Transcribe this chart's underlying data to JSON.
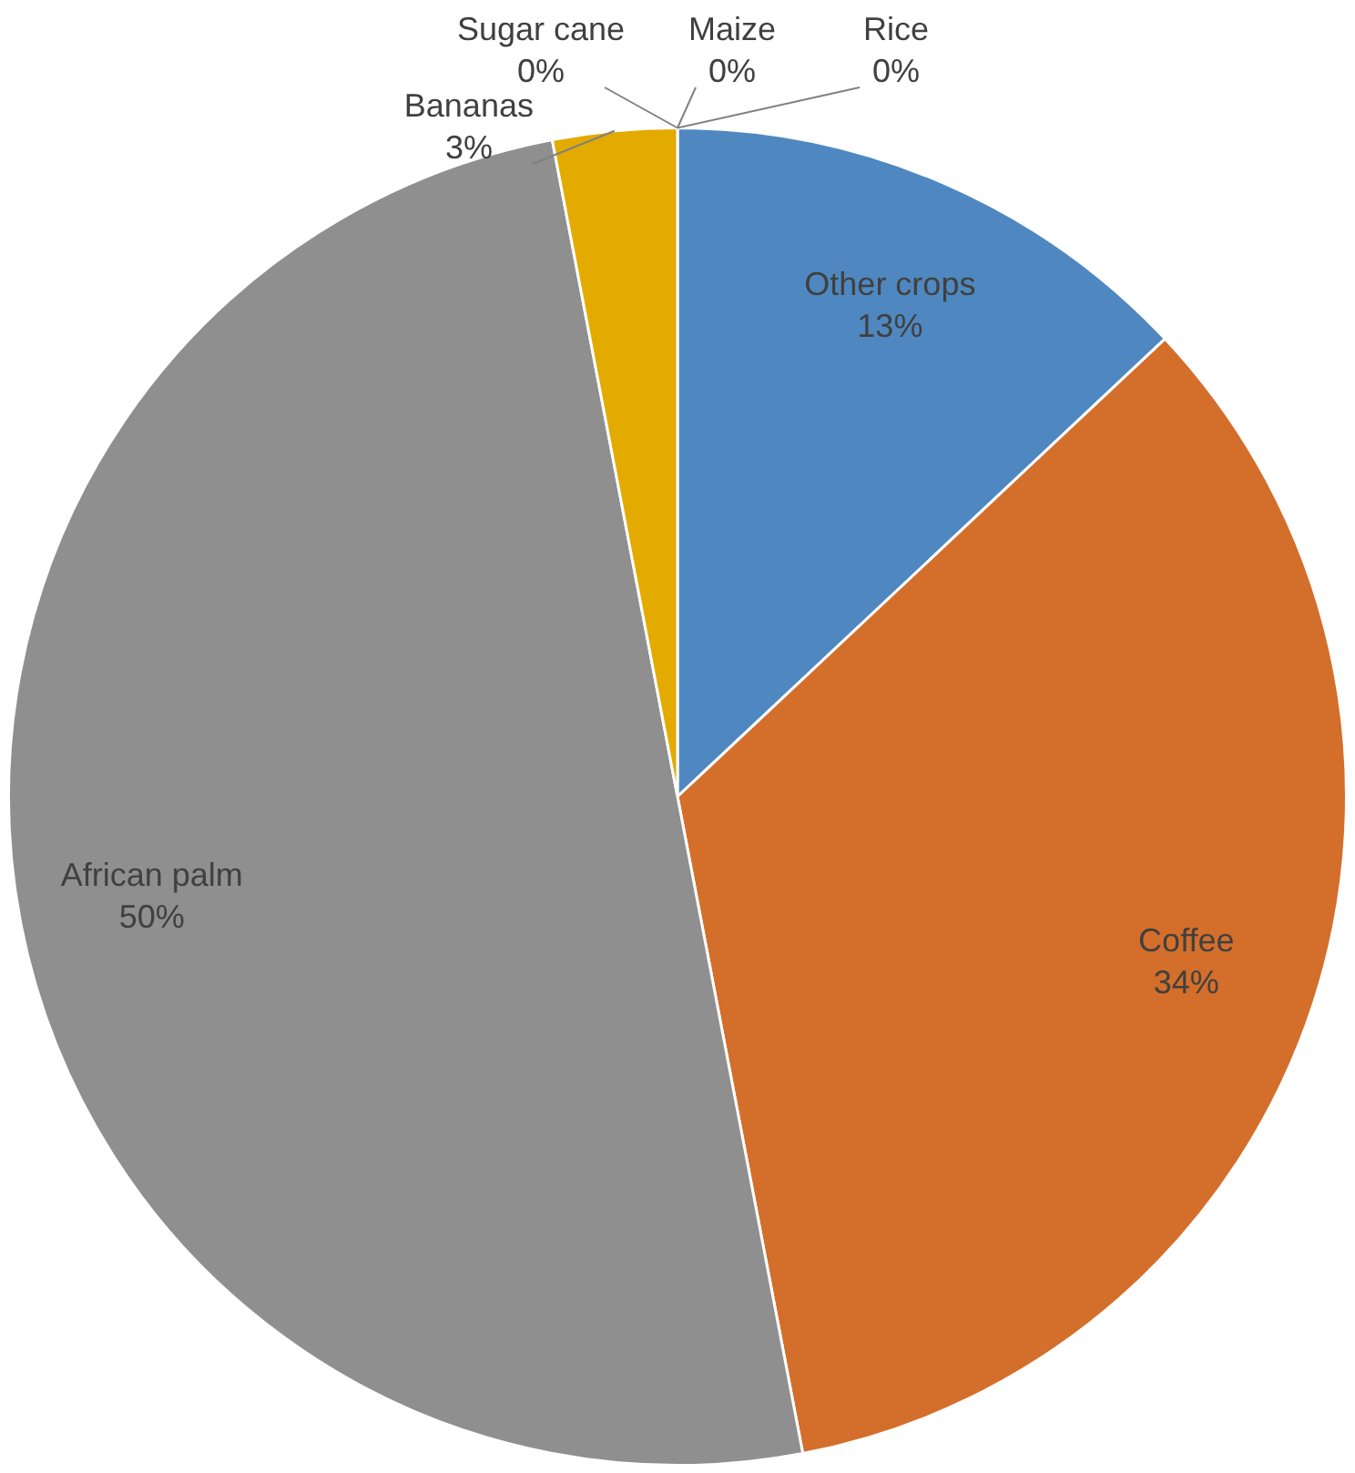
{
  "chart_data": {
    "type": "pie",
    "categories": [
      "Other crops",
      "Coffee",
      "African palm",
      "Bananas",
      "Sugar cane",
      "Maize",
      "Rice"
    ],
    "values": [
      13,
      34,
      50,
      3,
      0,
      0,
      0
    ],
    "value_labels": [
      "13%",
      "34%",
      "50%",
      "3%",
      "0%",
      "0%",
      "0%"
    ],
    "colors": [
      "#4f88c0",
      "#d46e2b",
      "#8f8f8f",
      "#e3aa00",
      "#2e5597",
      "#6a9a3a",
      "#a6c26a"
    ],
    "legend": false
  }
}
